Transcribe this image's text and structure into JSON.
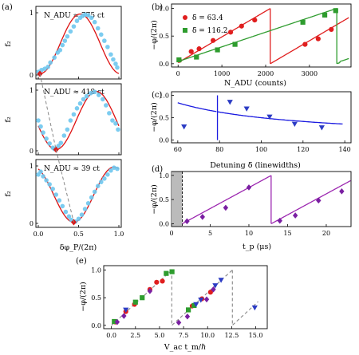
{
  "chart_data": [
    {
      "id": "a",
      "type": "scatter",
      "panel_label": "(a)",
      "xlabel": "δφ_P/(2π)",
      "ylabel": "f₂",
      "xlim": [
        0,
        1
      ],
      "ylim": [
        0,
        1
      ],
      "xticks": [
        "0.0",
        "0.5",
        "1.0"
      ],
      "yticks": [
        "0",
        "1"
      ],
      "subpanels": [
        {
          "annotation": "N_ADU ≈ 775 ct",
          "phase_min": 0.02,
          "minimum_marker": [
            0.02,
            0.02
          ],
          "points": [
            [
              0.0,
              0.05
            ],
            [
              0.02,
              0.02
            ],
            [
              0.04,
              0.08
            ],
            [
              0.08,
              0.1
            ],
            [
              0.12,
              0.13
            ],
            [
              0.15,
              0.2
            ],
            [
              0.2,
              0.28
            ],
            [
              0.24,
              0.36
            ],
            [
              0.27,
              0.4
            ],
            [
              0.3,
              0.48
            ],
            [
              0.33,
              0.55
            ],
            [
              0.36,
              0.62
            ],
            [
              0.4,
              0.7
            ],
            [
              0.44,
              0.78
            ],
            [
              0.48,
              0.87
            ],
            [
              0.52,
              0.92
            ],
            [
              0.55,
              0.95
            ],
            [
              0.58,
              0.97
            ],
            [
              0.62,
              0.96
            ],
            [
              0.66,
              0.92
            ],
            [
              0.7,
              0.85
            ],
            [
              0.74,
              0.75
            ],
            [
              0.78,
              0.65
            ],
            [
              0.82,
              0.55
            ],
            [
              0.86,
              0.45
            ],
            [
              0.9,
              0.33
            ],
            [
              0.93,
              0.25
            ],
            [
              0.96,
              0.18
            ],
            [
              0.98,
              0.12
            ]
          ]
        },
        {
          "annotation": "N_ADU ≈ 418 ct",
          "phase_min": 0.22,
          "minimum_marker": [
            0.22,
            0.02
          ],
          "points": [
            [
              0.0,
              0.5
            ],
            [
              0.03,
              0.4
            ],
            [
              0.06,
              0.3
            ],
            [
              0.1,
              0.2
            ],
            [
              0.14,
              0.12
            ],
            [
              0.18,
              0.05
            ],
            [
              0.2,
              0.03
            ],
            [
              0.25,
              0.08
            ],
            [
              0.28,
              0.13
            ],
            [
              0.32,
              0.25
            ],
            [
              0.36,
              0.35
            ],
            [
              0.4,
              0.5
            ],
            [
              0.44,
              0.6
            ],
            [
              0.48,
              0.7
            ],
            [
              0.52,
              0.78
            ],
            [
              0.56,
              0.85
            ],
            [
              0.6,
              0.9
            ],
            [
              0.65,
              0.95
            ],
            [
              0.7,
              0.97
            ],
            [
              0.75,
              0.92
            ],
            [
              0.8,
              0.85
            ],
            [
              0.84,
              0.75
            ],
            [
              0.88,
              0.62
            ],
            [
              0.92,
              0.5
            ],
            [
              0.96,
              0.45
            ],
            [
              0.99,
              0.35
            ]
          ]
        },
        {
          "annotation": "N_ADU ≈ 39 ct",
          "phase_min": 0.44,
          "minimum_marker": [
            0.44,
            0.02
          ],
          "points": [
            [
              0.0,
              0.85
            ],
            [
              0.03,
              0.9
            ],
            [
              0.06,
              0.82
            ],
            [
              0.1,
              0.75
            ],
            [
              0.14,
              0.68
            ],
            [
              0.18,
              0.6
            ],
            [
              0.22,
              0.5
            ],
            [
              0.26,
              0.4
            ],
            [
              0.3,
              0.3
            ],
            [
              0.34,
              0.2
            ],
            [
              0.38,
              0.12
            ],
            [
              0.41,
              0.06
            ],
            [
              0.46,
              0.03
            ],
            [
              0.5,
              0.08
            ],
            [
              0.54,
              0.15
            ],
            [
              0.58,
              0.25
            ],
            [
              0.62,
              0.35
            ],
            [
              0.66,
              0.45
            ],
            [
              0.7,
              0.55
            ],
            [
              0.74,
              0.65
            ],
            [
              0.78,
              0.72
            ],
            [
              0.82,
              0.78
            ],
            [
              0.86,
              0.85
            ],
            [
              0.9,
              0.92
            ],
            [
              0.94,
              0.97
            ],
            [
              0.98,
              0.95
            ]
          ]
        }
      ],
      "colors": {
        "points": "#6ec6ee",
        "fit": "#dd1111",
        "marker": "#d81b1b",
        "guide": "#888888"
      }
    },
    {
      "id": "b",
      "type": "scatter",
      "panel_label": "(b)",
      "xlabel": "N_ADU (counts)",
      "ylabel": "−φ/(2π)",
      "xlim": [
        -150,
        3950
      ],
      "ylim": [
        -0.06,
        1.08
      ],
      "xticks": [
        0,
        1000,
        2000,
        3000
      ],
      "yticks": [
        "0.0",
        "0.5",
        "1.0"
      ],
      "series": [
        {
          "name": "δ̃ = 63.4",
          "marker": "circle",
          "color": "#e01e1e",
          "points": [
            [
              30,
              0.06
            ],
            [
              300,
              0.22
            ],
            [
              480,
              0.27
            ],
            [
              800,
              0.42
            ],
            [
              1200,
              0.57
            ],
            [
              1450,
              0.68
            ],
            [
              1750,
              0.79
            ],
            [
              2900,
              0.35
            ],
            [
              3200,
              0.45
            ],
            [
              3500,
              0.62
            ]
          ],
          "fit": {
            "slope_per_count": 0.000465,
            "period": 2150,
            "offset": 0.02
          }
        },
        {
          "name": "δ̃ = 116.2",
          "marker": "square",
          "color": "#2e9c2e",
          "points": [
            [
              20,
              0.07
            ],
            [
              420,
              0.12
            ],
            [
              900,
              0.25
            ],
            [
              1300,
              0.35
            ],
            [
              2850,
              0.75
            ],
            [
              3350,
              0.88
            ],
            [
              3600,
              0.96
            ]
          ],
          "fit": {
            "slope_per_count": 0.000265,
            "period": 3700,
            "offset": 0.04
          }
        }
      ],
      "legend_position": "top-left"
    },
    {
      "id": "c",
      "type": "scatter",
      "panel_label": "(c)",
      "xlabel": "Detuning δ̃ (linewidths)",
      "ylabel": "−φ/(2π)",
      "xlim": [
        57,
        143
      ],
      "ylim": [
        -0.06,
        1.08
      ],
      "xticks": [
        60,
        80,
        100,
        120,
        140
      ],
      "yticks": [
        "0.0",
        "0.5",
        "1.0"
      ],
      "points": [
        [
          63,
          0.3
        ],
        [
          85,
          0.85
        ],
        [
          93,
          0.7
        ],
        [
          104,
          0.52
        ],
        [
          116,
          0.36
        ],
        [
          129,
          0.28
        ]
      ],
      "curve_constant": 5000,
      "wrap_at": 79,
      "colors": {
        "points": "#2c3cc4",
        "fit": "#1a1ae0"
      }
    },
    {
      "id": "d",
      "type": "scatter",
      "panel_label": "(d)",
      "xlabel": "t_p (μs)",
      "ylabel": "−φ/(2π)",
      "xlim": [
        0,
        23.2
      ],
      "ylim": [
        -0.06,
        1.08
      ],
      "xticks": [
        0,
        5,
        10,
        15,
        20
      ],
      "yticks": [
        "0.0",
        "0.5",
        "1.0"
      ],
      "points": [
        [
          2,
          0.05
        ],
        [
          4,
          0.14
        ],
        [
          7,
          0.33
        ],
        [
          10,
          0.75
        ],
        [
          14,
          0.06
        ],
        [
          16,
          0.17
        ],
        [
          19,
          0.48
        ],
        [
          22,
          0.67
        ]
      ],
      "fit": {
        "t0": 1.4,
        "period": 11.5
      },
      "dead_time_us": 1.4,
      "colors": {
        "points": "#7a1fa2",
        "fit": "#9c27b0",
        "shade": "#bbbbbb"
      }
    },
    {
      "id": "e",
      "type": "scatter",
      "panel_label": "(e)",
      "xlabel": "V_ac t_m/ℏ",
      "ylabel": "−φ/(2π)",
      "xlim": [
        -0.8,
        16.2
      ],
      "ylim": [
        -0.06,
        1.08
      ],
      "xticks": [
        "0.0",
        "2.5",
        "5.0",
        "7.5",
        "10.0",
        "12.5",
        "15.0"
      ],
      "yticks": [
        "0.0",
        "0.5",
        "1.0"
      ],
      "period": 6.28,
      "series": [
        {
          "marker": "circle",
          "color": "#e01e1e",
          "points": [
            [
              0.4,
              0.06
            ],
            [
              1.5,
              0.25
            ],
            [
              2.4,
              0.38
            ],
            [
              4.0,
              0.65
            ],
            [
              4.7,
              0.78
            ],
            [
              5.3,
              0.8
            ],
            [
              8.4,
              0.35
            ],
            [
              9.4,
              0.48
            ],
            [
              10.3,
              0.6
            ]
          ]
        },
        {
          "marker": "square",
          "color": "#2e9c2e",
          "points": [
            [
              0.3,
              0.07
            ],
            [
              2.5,
              0.42
            ],
            [
              3.2,
              0.5
            ],
            [
              5.7,
              0.94
            ],
            [
              6.3,
              0.97
            ],
            [
              8.0,
              0.28
            ],
            [
              8.6,
              0.36
            ]
          ]
        },
        {
          "marker": "triangle-down",
          "color": "#2c3cc4",
          "points": [
            [
              1.5,
              0.28
            ],
            [
              8.8,
              0.38
            ],
            [
              9.3,
              0.46
            ],
            [
              10.8,
              0.72
            ],
            [
              11.4,
              0.82
            ],
            [
              14.9,
              0.32
            ]
          ]
        },
        {
          "marker": "diamond",
          "color": "#7a1fa2",
          "points": [
            [
              0.6,
              0.06
            ],
            [
              1.3,
              0.17
            ],
            [
              4.0,
              0.62
            ],
            [
              7.0,
              0.05
            ],
            [
              7.9,
              0.16
            ],
            [
              9.9,
              0.47
            ],
            [
              10.6,
              0.65
            ]
          ]
        }
      ],
      "colors": {
        "guide": "#888888"
      }
    }
  ]
}
